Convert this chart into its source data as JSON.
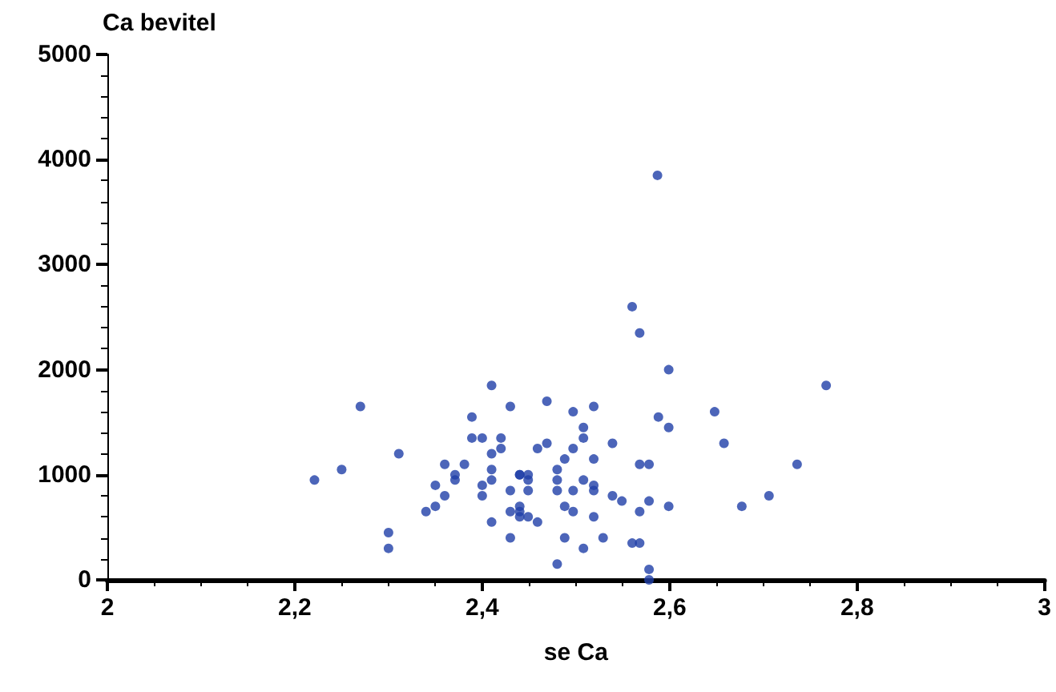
{
  "chart_data": {
    "type": "scatter",
    "xlabel": "se Ca",
    "ylabel": "Ca bevitel",
    "marker": "circle",
    "xlim": [
      2,
      3
    ],
    "ylim": [
      0,
      5000
    ],
    "xticks": [
      2,
      {
        "value": 2.2,
        "label": "2,2"
      },
      {
        "value": 2.4,
        "label": "2,4"
      },
      {
        "value": 2.6,
        "label": "2,6"
      },
      {
        "value": 2.8,
        "label": "2,8"
      },
      3
    ],
    "yticks": [
      0,
      1000,
      2000,
      3000,
      4000,
      5000
    ],
    "series": [
      {
        "color": "#1f3fa8",
        "x": [
          2.221,
          2.25,
          2.27,
          2.311,
          2.3,
          2.3,
          2.34,
          2.35,
          2.35,
          2.36,
          2.36,
          2.371,
          2.371,
          2.381,
          2.389,
          2.389,
          2.4,
          2.4,
          2.4,
          2.41,
          2.41,
          2.41,
          2.41,
          2.41,
          2.42,
          2.42,
          2.43,
          2.43,
          2.43,
          2.43,
          2.44,
          2.44,
          2.44,
          2.44,
          2.44,
          2.449,
          2.449,
          2.449,
          2.449,
          2.459,
          2.459,
          2.469,
          2.469,
          2.48,
          2.48,
          2.48,
          2.48,
          2.488,
          2.488,
          2.488,
          2.497,
          2.497,
          2.497,
          2.497,
          2.56,
          2.568,
          2.599,
          2.767,
          2.519,
          2.588,
          2.648,
          2.508,
          2.508,
          2.599,
          2.658,
          2.539,
          2.519,
          2.568,
          2.578,
          2.736,
          2.508,
          2.519,
          2.519,
          2.706,
          2.539,
          2.549,
          2.578,
          2.677,
          2.599,
          2.519,
          2.568,
          2.529,
          2.508,
          2.56,
          2.568,
          2.578,
          2.587,
          2.578
        ],
        "values": [
          950,
          1050,
          1650,
          1200,
          450,
          300,
          650,
          700,
          900,
          800,
          1100,
          1000,
          950,
          1100,
          1550,
          1350,
          1350,
          900,
          800,
          1850,
          1200,
          1050,
          950,
          550,
          1350,
          1250,
          1650,
          850,
          650,
          400,
          1000,
          1000,
          700,
          650,
          600,
          1000,
          950,
          850,
          600,
          1250,
          550,
          1700,
          1300,
          1050,
          950,
          850,
          150,
          1150,
          700,
          400,
          1600,
          1250,
          850,
          650,
          2600,
          2350,
          2000,
          1850,
          1650,
          1550,
          1600,
          1450,
          1350,
          1450,
          1300,
          1300,
          1150,
          1100,
          1100,
          1100,
          950,
          900,
          850,
          800,
          800,
          750,
          750,
          700,
          700,
          600,
          650,
          400,
          300,
          350,
          350,
          100,
          3850,
          0
        ]
      }
    ]
  }
}
